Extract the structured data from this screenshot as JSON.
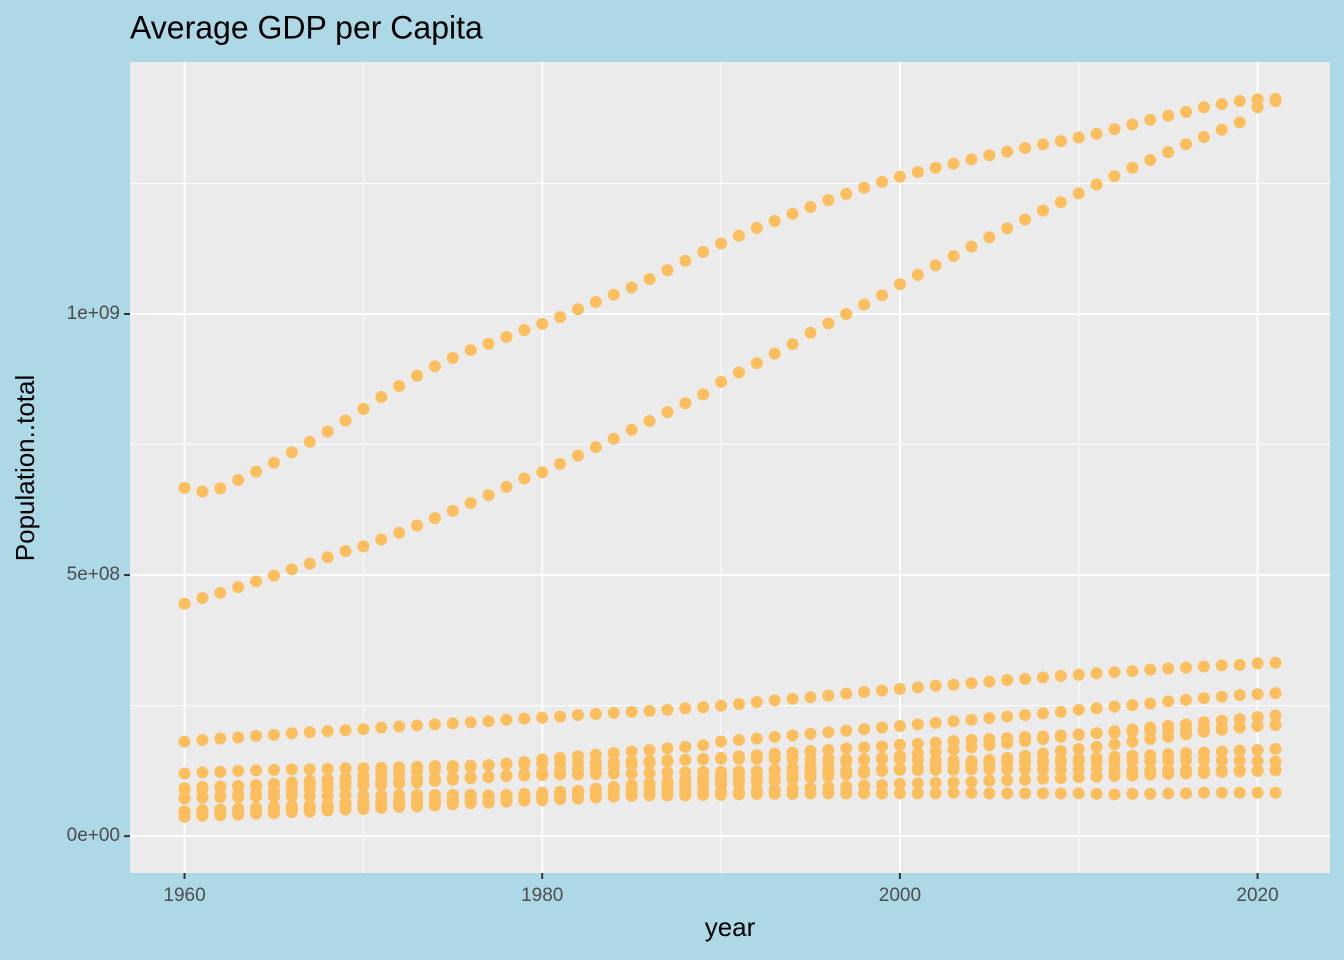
{
  "chart_data": {
    "type": "scatter",
    "title": "Average GDP per Capita",
    "x_label": "year",
    "y_label": "Population..total",
    "color": "#FDBE5E",
    "grid": true,
    "xlim": [
      1956.95,
      2024.05
    ],
    "ylim": [
      -70600000,
      1482600000
    ],
    "xticks": [
      1960,
      1980,
      2000,
      2020
    ],
    "yticks": [
      {
        "value": 0,
        "label": "0e+00"
      },
      {
        "value": 500000000,
        "label": "5e+08"
      },
      {
        "value": 1000000000,
        "label": "1e+09"
      }
    ],
    "xminor": [
      1970,
      1990,
      2010
    ],
    "yminor": [
      250000000,
      750000000,
      1250000000
    ],
    "x": [
      1960,
      1961,
      1962,
      1963,
      1964,
      1965,
      1966,
      1967,
      1968,
      1969,
      1970,
      1971,
      1972,
      1973,
      1974,
      1975,
      1976,
      1977,
      1978,
      1979,
      1980,
      1981,
      1982,
      1983,
      1984,
      1985,
      1986,
      1987,
      1988,
      1989,
      1990,
      1991,
      1992,
      1993,
      1994,
      1995,
      1996,
      1997,
      1998,
      1999,
      2000,
      2001,
      2002,
      2003,
      2004,
      2005,
      2006,
      2007,
      2008,
      2009,
      2010,
      2011,
      2012,
      2013,
      2014,
      2015,
      2016,
      2017,
      2018,
      2019,
      2020,
      2021
    ],
    "series": [
      {
        "values": [
          667000000.0,
          660000000.0,
          666000000.0,
          682000000.0,
          698000000.0,
          715000000.0,
          735000000.0,
          755000000.0,
          775000000.0,
          796000000.0,
          818000000.0,
          841000000.0,
          862000000.0,
          882000000.0,
          900000000.0,
          916000000.0,
          931000000.0,
          943000000.0,
          956000000.0,
          969000000.0,
          981000000.0,
          994000000.0,
          1009000000.0,
          1023000000.0,
          1037000000.0,
          1051000000.0,
          1067000000.0,
          1084000000.0,
          1102000000.0,
          1119000000.0,
          1135000000.0,
          1150000000.0,
          1165000000.0,
          1178000000.0,
          1192000000.0,
          1205000000.0,
          1218000000.0,
          1230000000.0,
          1242000000.0,
          1253000000.0,
          1263000000.0,
          1272000000.0,
          1280000000.0,
          1288000000.0,
          1296000000.0,
          1304000000.0,
          1311000000.0,
          1318000000.0,
          1325000000.0,
          1331000000.0,
          1338000000.0,
          1345000000.0,
          1354000000.0,
          1363000000.0,
          1372000000.0,
          1380000000.0,
          1387000000.0,
          1396000000.0,
          1402000000.0,
          1408000000.0,
          1411000000.0,
          1412000000.0
        ]
      },
      {
        "values": [
          445000000.0,
          456000000.0,
          466000000.0,
          477000000.0,
          488000000.0,
          499000000.0,
          511000000.0,
          522000000.0,
          534000000.0,
          546000000.0,
          555000000.0,
          568000000.0,
          581000000.0,
          595000000.0,
          609000000.0,
          623000000.0,
          638000000.0,
          653000000.0,
          669000000.0,
          685000000.0,
          697000000.0,
          713000000.0,
          729000000.0,
          745000000.0,
          761000000.0,
          778000000.0,
          795000000.0,
          812000000.0,
          829000000.0,
          846000000.0,
          870000000.0,
          888000000.0,
          906000000.0,
          924000000.0,
          942000000.0,
          964000000.0,
          982000000.0,
          1000000000.0,
          1018000000.0,
          1036000000.0,
          1057000000.0,
          1075000000.0,
          1093000000.0,
          1111000000.0,
          1129000000.0,
          1147000000.0,
          1164000000.0,
          1181000000.0,
          1198000000.0,
          1214000000.0,
          1231000000.0,
          1248000000.0,
          1264000000.0,
          1280000000.0,
          1295000000.0,
          1310000000.0,
          1325000000.0,
          1339000000.0,
          1353000000.0,
          1367000000.0,
          1396000000.0,
          1408000000.0
        ]
      },
      {
        "values": [
          181000000.0,
          184000000.0,
          187000000.0,
          189000000.0,
          192000000.0,
          194000000.0,
          197000000.0,
          199000000.0,
          201000000.0,
          203000000.0,
          205000000.0,
          208000000.0,
          210000000.0,
          212000000.0,
          214000000.0,
          216000000.0,
          218000000.0,
          220000000.0,
          223000000.0,
          225000000.0,
          227000000.0,
          229000000.0,
          232000000.0,
          234000000.0,
          236000000.0,
          238000000.0,
          240000000.0,
          242000000.0,
          245000000.0,
          247000000.0,
          250000000.0,
          253000000.0,
          257000000.0,
          260000000.0,
          263000000.0,
          266000000.0,
          269000000.0,
          273000000.0,
          276000000.0,
          279000000.0,
          282000000.0,
          285000000.0,
          288000000.0,
          290000000.0,
          293000000.0,
          296000000.0,
          299000000.0,
          301000000.0,
          304000000.0,
          307000000.0,
          309000000.0,
          312000000.0,
          314000000.0,
          316000000.0,
          319000000.0,
          321000000.0,
          323000000.0,
          325000000.0,
          327000000.0,
          328000000.0,
          331000000.0,
          332000000.0
        ]
      },
      {
        "values": [
          88000000.0,
          90000000.0,
          93000000.0,
          95000000.0,
          98000000.0,
          100000000.0,
          103000000.0,
          106000000.0,
          109000000.0,
          112000000.0,
          115000000.0,
          118000000.0,
          121000000.0,
          124000000.0,
          127000000.0,
          130000000.0,
          133000000.0,
          136000000.0,
          139000000.0,
          142000000.0,
          147000000.0,
          150000000.0,
          153000000.0,
          156000000.0,
          159000000.0,
          162000000.0,
          165000000.0,
          168000000.0,
          171000000.0,
          174000000.0,
          181000000.0,
          184000000.0,
          187000000.0,
          190000000.0,
          193000000.0,
          196000000.0,
          199000000.0,
          202000000.0,
          205000000.0,
          208000000.0,
          211000000.0,
          214000000.0,
          217000000.0,
          220000000.0,
          223000000.0,
          226000000.0,
          229000000.0,
          232000000.0,
          235000000.0,
          238000000.0,
          242000000.0,
          245000000.0,
          248000000.0,
          251000000.0,
          254000000.0,
          258000000.0,
          261000000.0,
          264000000.0,
          267000000.0,
          270000000.0,
          272000000.0,
          274000000.0
        ]
      },
      {
        "values": [
          45000000.0,
          46000000.0,
          47000000.0,
          48000000.0,
          50000000.0,
          51000000.0,
          52000000.0,
          54000000.0,
          55000000.0,
          56000000.0,
          58000000.0,
          60000000.0,
          62000000.0,
          65000000.0,
          67000000.0,
          69000000.0,
          71000000.0,
          73000000.0,
          75000000.0,
          78000000.0,
          80000000.0,
          84000000.0,
          87000000.0,
          91000000.0,
          94000000.0,
          98000000.0,
          101000000.0,
          105000000.0,
          108000000.0,
          112000000.0,
          115000000.0,
          119000000.0,
          123000000.0,
          127000000.0,
          131000000.0,
          134000000.0,
          138000000.0,
          142000000.0,
          146000000.0,
          150000000.0,
          154000000.0,
          158000000.0,
          162000000.0,
          166000000.0,
          170000000.0,
          174000000.0,
          178000000.0,
          182000000.0,
          186000000.0,
          190000000.0,
          194000000.0,
          197000000.0,
          201000000.0,
          204000000.0,
          208000000.0,
          211000000.0,
          214000000.0,
          218000000.0,
          221000000.0,
          224000000.0,
          228000000.0,
          231000000.0
        ]
      },
      {
        "values": [
          72000000.0,
          75000000.0,
          77000000.0,
          80000000.0,
          82000000.0,
          85000000.0,
          87000000.0,
          90000000.0,
          92000000.0,
          94000000.0,
          96000000.0,
          98000000.0,
          101000000.0,
          103000000.0,
          106000000.0,
          108000000.0,
          111000000.0,
          113000000.0,
          116000000.0,
          119000000.0,
          122000000.0,
          125000000.0,
          128000000.0,
          131000000.0,
          134000000.0,
          137000000.0,
          140000000.0,
          143000000.0,
          146000000.0,
          148000000.0,
          150000000.0,
          153000000.0,
          155000000.0,
          158000000.0,
          160000000.0,
          163000000.0,
          165000000.0,
          168000000.0,
          170000000.0,
          172000000.0,
          175000000.0,
          177000000.0,
          179000000.0,
          182000000.0,
          184000000.0,
          186000000.0,
          188000000.0,
          190000000.0,
          191000000.0,
          193000000.0,
          195000000.0,
          197000000.0,
          198000000.0,
          200000000.0,
          201000000.0,
          203000000.0,
          204000000.0,
          206000000.0,
          207000000.0,
          209000000.0,
          211000000.0,
          213000000.0
        ]
      },
      {
        "values": [
          120000000.0,
          122000000.0,
          123000000.0,
          125000000.0,
          126000000.0,
          127000000.0,
          128000000.0,
          128000000.0,
          129000000.0,
          130000000.0,
          130000000.0,
          131000000.0,
          132000000.0,
          133000000.0,
          134000000.0,
          134000000.0,
          135000000.0,
          136000000.0,
          137000000.0,
          138000000.0,
          139000000.0,
          139000000.0,
          140000000.0,
          141000000.0,
          142000000.0,
          143000000.0,
          144000000.0,
          145000000.0,
          146000000.0,
          147000000.0,
          148000000.0,
          148000000.0,
          148000000.0,
          148000000.0,
          148000000.0,
          148000000.0,
          148000000.0,
          147000000.0,
          147000000.0,
          147000000.0,
          147000000.0,
          146000000.0,
          145000000.0,
          145000000.0,
          144000000.0,
          143000000.0,
          143000000.0,
          142000000.0,
          142000000.0,
          143000000.0,
          143000000.0,
          143000000.0,
          143000000.0,
          144000000.0,
          144000000.0,
          144000000.0,
          145000000.0,
          145000000.0,
          145000000.0,
          145000000.0,
          144000000.0,
          143000000.0
        ]
      },
      {
        "values": [
          92000000.0,
          94000000.0,
          95000000.0,
          96000000.0,
          97000000.0,
          98000000.0,
          99000000.0,
          100000000.0,
          101000000.0,
          102000000.0,
          104000000.0,
          105000000.0,
          107000000.0,
          109000000.0,
          110000000.0,
          112000000.0,
          113000000.0,
          114000000.0,
          115000000.0,
          116000000.0,
          117000000.0,
          118000000.0,
          118000000.0,
          119000000.0,
          120000000.0,
          120000000.0,
          121000000.0,
          122000000.0,
          122000000.0,
          123000000.0,
          123000000.0,
          124000000.0,
          124000000.0,
          125000000.0,
          125000000.0,
          125000000.0,
          126000000.0,
          126000000.0,
          126000000.0,
          127000000.0,
          127000000.0,
          127000000.0,
          127000000.0,
          127000000.0,
          128000000.0,
          128000000.0,
          128000000.0,
          128000000.0,
          128000000.0,
          128000000.0,
          128000000.0,
          128000000.0,
          128000000.0,
          127000000.0,
          127000000.0,
          127000000.0,
          127000000.0,
          127000000.0,
          126000000.0,
          126000000.0,
          126000000.0,
          126000000.0
        ]
      },
      {
        "values": [
          45000000.0,
          46000000.0,
          47000000.0,
          49000000.0,
          50000000.0,
          51000000.0,
          52000000.0,
          54000000.0,
          55000000.0,
          56000000.0,
          58000000.0,
          59000000.0,
          61000000.0,
          62000000.0,
          64000000.0,
          66000000.0,
          67000000.0,
          69000000.0,
          71000000.0,
          73000000.0,
          75000000.0,
          78000000.0,
          80000000.0,
          82000000.0,
          84000000.0,
          86000000.0,
          89000000.0,
          91000000.0,
          93000000.0,
          96000000.0,
          98000000.0,
          101000000.0,
          103000000.0,
          106000000.0,
          109000000.0,
          112000000.0,
          115000000.0,
          118000000.0,
          121000000.0,
          125000000.0,
          128000000.0,
          131000000.0,
          135000000.0,
          138000000.0,
          142000000.0,
          146000000.0,
          150000000.0,
          154000000.0,
          158000000.0,
          163000000.0,
          167000000.0,
          171000000.0,
          176000000.0,
          181000000.0,
          186000000.0,
          190000000.0,
          195000000.0,
          200000000.0,
          204000000.0,
          208000000.0,
          212000000.0,
          213000000.0
        ]
      },
      {
        "values": [
          48000000.0,
          50000000.0,
          51000000.0,
          53000000.0,
          54000000.0,
          56000000.0,
          58000000.0,
          59000000.0,
          61000000.0,
          63000000.0,
          65000000.0,
          66000000.0,
          67000000.0,
          69000000.0,
          71000000.0,
          73000000.0,
          75000000.0,
          77000000.0,
          79000000.0,
          81000000.0,
          83000000.0,
          85000000.0,
          87000000.0,
          90000000.0,
          92000000.0,
          94000000.0,
          96000000.0,
          99000000.0,
          101000000.0,
          103000000.0,
          106000000.0,
          108000000.0,
          110000000.0,
          112000000.0,
          114000000.0,
          117000000.0,
          119000000.0,
          121000000.0,
          123000000.0,
          126000000.0,
          128000000.0,
          130000000.0,
          132000000.0,
          134000000.0,
          136000000.0,
          139000000.0,
          141000000.0,
          143000000.0,
          144000000.0,
          146000000.0,
          148000000.0,
          150000000.0,
          152000000.0,
          154000000.0,
          155000000.0,
          157000000.0,
          159000000.0,
          160000000.0,
          162000000.0,
          164000000.0,
          165000000.0,
          167000000.0
        ]
      },
      {
        "values": [
          73000000.0,
          74000000.0,
          75000000.0,
          75000000.0,
          76000000.0,
          76000000.0,
          77000000.0,
          77000000.0,
          77000000.0,
          78000000.0,
          78000000.0,
          78000000.0,
          79000000.0,
          79000000.0,
          79000000.0,
          79000000.0,
          79000000.0,
          78000000.0,
          78000000.0,
          78000000.0,
          78000000.0,
          78000000.0,
          78000000.0,
          78000000.0,
          78000000.0,
          78000000.0,
          78000000.0,
          78000000.0,
          78000000.0,
          79000000.0,
          79000000.0,
          80000000.0,
          81000000.0,
          81000000.0,
          81000000.0,
          82000000.0,
          82000000.0,
          82000000.0,
          82000000.0,
          82000000.0,
          82000000.0,
          82000000.0,
          82000000.0,
          83000000.0,
          83000000.0,
          82000000.0,
          82000000.0,
          82000000.0,
          82000000.0,
          82000000.0,
          82000000.0,
          81000000.0,
          80000000.0,
          81000000.0,
          81000000.0,
          82000000.0,
          82000000.0,
          83000000.0,
          83000000.0,
          83000000.0,
          83000000.0,
          83000000.0
        ]
      },
      {
        "values": [
          37000000.0,
          39000000.0,
          40000000.0,
          41000000.0,
          43000000.0,
          44000000.0,
          46000000.0,
          47000000.0,
          49000000.0,
          51000000.0,
          52000000.0,
          54000000.0,
          56000000.0,
          57000000.0,
          59000000.0,
          61000000.0,
          63000000.0,
          64000000.0,
          66000000.0,
          68000000.0,
          69000000.0,
          71000000.0,
          72000000.0,
          74000000.0,
          76000000.0,
          77000000.0,
          79000000.0,
          80000000.0,
          82000000.0,
          83000000.0,
          84000000.0,
          86000000.0,
          88000000.0,
          89000000.0,
          91000000.0,
          92000000.0,
          94000000.0,
          95000000.0,
          97000000.0,
          98000000.0,
          100000000.0,
          101000000.0,
          102000000.0,
          103000000.0,
          104000000.0,
          106000000.0,
          107000000.0,
          108000000.0,
          110000000.0,
          111000000.0,
          113000000.0,
          114000000.0,
          115000000.0,
          116000000.0,
          118000000.0,
          119000000.0,
          120000000.0,
          121000000.0,
          123000000.0,
          124000000.0,
          125000000.0,
          127000000.0
        ]
      }
    ]
  }
}
